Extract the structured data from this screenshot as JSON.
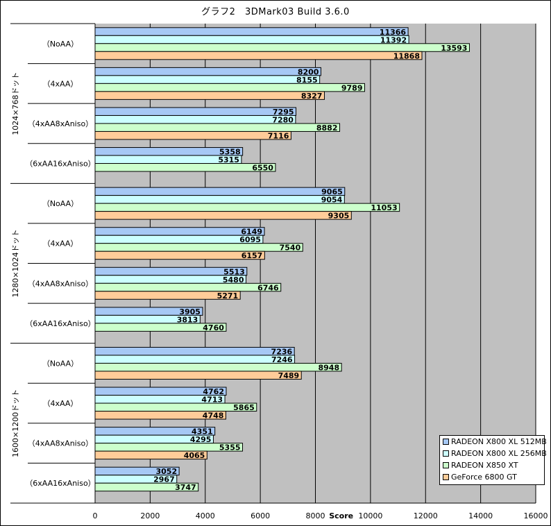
{
  "chart_data": {
    "type": "bar",
    "orientation": "horizontal",
    "title": "グラフ2　3DMark03  Build  3.6.0",
    "xlabel": "Score",
    "xlim": [
      0,
      16000
    ],
    "xticks": [
      0,
      2000,
      4000,
      6000,
      8000,
      10000,
      12000,
      14000,
      16000
    ],
    "grid": true,
    "legend_position": "bottom-right",
    "groups": [
      {
        "label": "1024×768ドット",
        "categories": [
          "（NoAA）",
          "（4xAA）",
          "（4xAA8xAniso）",
          "（6xAA16xAniso）"
        ]
      },
      {
        "label": "1280×1024ドット",
        "categories": [
          "（NoAA）",
          "（4xAA）",
          "（4xAA8xAniso）",
          "（6xAA16xAniso）"
        ]
      },
      {
        "label": "1600×1200ドット",
        "categories": [
          "（NoAA）",
          "（4xAA）",
          "（4xAA8xAniso）",
          "（6xAA16xAniso）"
        ]
      }
    ],
    "series": [
      {
        "name": "RADEON X800 XL 512MB",
        "color": "#a6c8f5",
        "values": [
          11366,
          8200,
          7295,
          5358,
          9065,
          6149,
          5513,
          3905,
          7236,
          4762,
          4351,
          3052
        ]
      },
      {
        "name": "RADEON X800 XL 256MB",
        "color": "#ccffff",
        "values": [
          11392,
          8155,
          7280,
          5315,
          9054,
          6095,
          5480,
          3813,
          7246,
          4713,
          4295,
          2967
        ]
      },
      {
        "name": "RADEON X850 XT",
        "color": "#ccffcc",
        "values": [
          13593,
          9789,
          8882,
          6550,
          11053,
          7540,
          6746,
          4760,
          8948,
          5865,
          5355,
          3747
        ]
      },
      {
        "name": "GeForce 6800 GT",
        "color": "#ffcc99",
        "values": [
          11868,
          8327,
          7116,
          null,
          9305,
          6157,
          5271,
          null,
          7489,
          4748,
          4065,
          null
        ]
      }
    ]
  }
}
